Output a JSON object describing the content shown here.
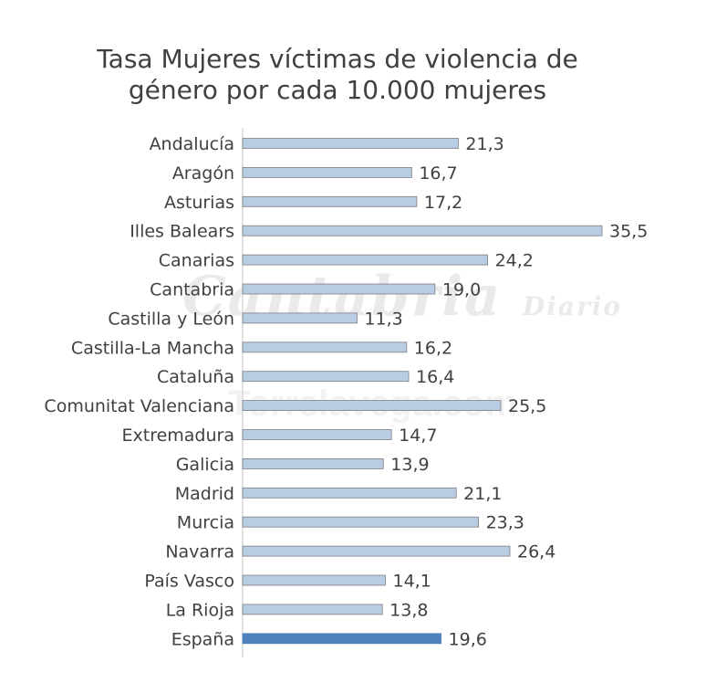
{
  "chart_data": {
    "type": "bar",
    "orientation": "horizontal",
    "title": "Tasa Mujeres víctimas de violencia de género por cada 10.000 mujeres",
    "title_lines": [
      "Tasa Mujeres víctimas de violencia de",
      "género por cada 10.000 mujeres"
    ],
    "categories": [
      "Andalucía",
      "Aragón",
      "Asturias",
      "Illes Balears",
      "Canarias",
      "Cantabria",
      "Castilla y León",
      "Castilla-La Mancha",
      "Cataluña",
      "Comunitat Valenciana",
      "Extremadura",
      "Galicia",
      "Madrid",
      "Murcia",
      "Navarra",
      "País Vasco",
      "La Rioja",
      "España"
    ],
    "values": [
      21.3,
      16.7,
      17.2,
      35.5,
      24.2,
      19.0,
      11.3,
      16.2,
      16.4,
      25.5,
      14.7,
      13.9,
      21.1,
      23.3,
      26.4,
      14.1,
      13.8,
      19.6
    ],
    "value_labels": [
      "21,3",
      "16,7",
      "17,2",
      "35,5",
      "24,2",
      "19,0",
      "11,3",
      "16,2",
      "16,4",
      "25,5",
      "14,7",
      "13,9",
      "21,1",
      "23,3",
      "26,4",
      "14,1",
      "13,8",
      "19,6"
    ],
    "highlight_index": 17,
    "xlim": [
      0,
      36
    ],
    "grid": false,
    "colors": {
      "bar": "#b8cce4",
      "bar_border": "#7f7f7f",
      "highlight": "#4f81bd",
      "text": "#404040",
      "axis": "#d9d9d9"
    }
  },
  "watermark": {
    "line1": "Cantabria",
    "line2": "Diario",
    "line3": "Torrelavega.com"
  }
}
